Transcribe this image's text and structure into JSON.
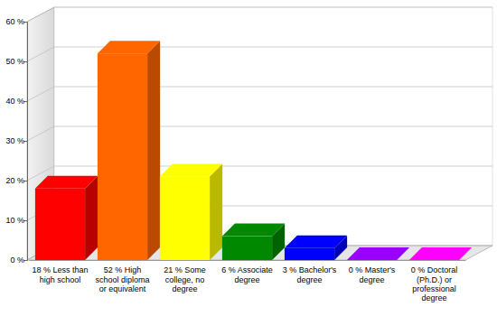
{
  "chart_data": {
    "type": "bar",
    "categories": [
      "18 % Less than high school",
      "52 % High school diploma or equivalent",
      "21 % Some college, no degree",
      "6 % Associate degree",
      "3 % Bachelor's degree",
      "0 % Master's degree",
      "0 % Doctoral (Ph.D.) or professional degree"
    ],
    "values": [
      18,
      52,
      21,
      6,
      3,
      0,
      0
    ],
    "colors": [
      "#ff0000",
      "#ff6600",
      "#ffff00",
      "#008800",
      "#0000ff",
      "#9900ff",
      "#ff00ff"
    ],
    "ylim": [
      0,
      60
    ],
    "yticks": [
      {
        "value": 0,
        "label": "0 %"
      },
      {
        "value": 10,
        "label": "10 %"
      },
      {
        "value": 20,
        "label": "20 %"
      },
      {
        "value": 30,
        "label": "30 %"
      },
      {
        "value": 40,
        "label": "40 %"
      },
      {
        "value": 50,
        "label": "50 %"
      },
      {
        "value": 60,
        "label": "60 %"
      }
    ],
    "grid": true
  }
}
